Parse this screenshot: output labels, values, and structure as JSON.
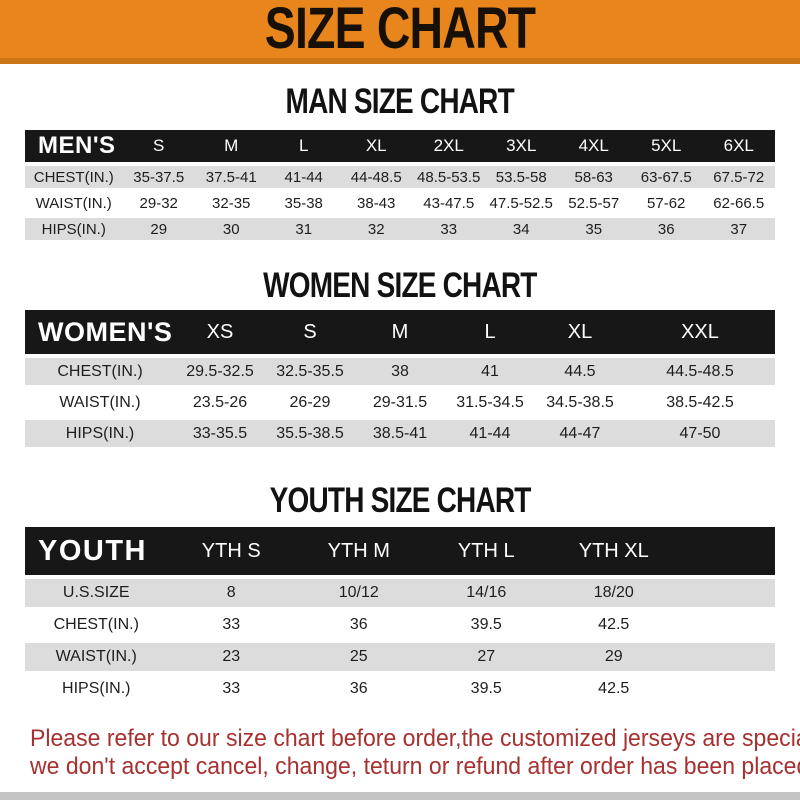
{
  "banner": {
    "title": "SIZE CHART",
    "bg_color": "#E8861D",
    "edge_color": "#C97714",
    "text_color": "#161006"
  },
  "sections": [
    {
      "heading": "MAN SIZE CHART",
      "label": "MEN'S",
      "columns": [
        "S",
        "M",
        "L",
        "XL",
        "2XL",
        "3XL",
        "4XL",
        "5XL",
        "6XL"
      ],
      "rows": [
        {
          "label": "CHEST(IN.)",
          "values": [
            "35-37.5",
            "37.5-41",
            "41-44",
            "44-48.5",
            "48.5-53.5",
            "53.5-58",
            "58-63",
            "63-67.5",
            "67.5-72"
          ]
        },
        {
          "label": "WAIST(IN.)",
          "values": [
            "29-32",
            "32-35",
            "35-38",
            "38-43",
            "43-47.5",
            "47.5-52.5",
            "52.5-57",
            "57-62",
            "62-66.5"
          ]
        },
        {
          "label": "HIPS(IN.)",
          "values": [
            "29",
            "30",
            "31",
            "32",
            "33",
            "34",
            "35",
            "36",
            "37"
          ]
        }
      ]
    },
    {
      "heading": "WOMEN SIZE CHART",
      "label": "WOMEN'S",
      "columns": [
        "XS",
        "S",
        "M",
        "L",
        "XL",
        "XXL"
      ],
      "rows": [
        {
          "label": "CHEST(IN.)",
          "values": [
            "29.5-32.5",
            "32.5-35.5",
            "38",
            "41",
            "44.5",
            "44.5-48.5"
          ]
        },
        {
          "label": "WAIST(IN.)",
          "values": [
            "23.5-26",
            "26-29",
            "29-31.5",
            "31.5-34.5",
            "34.5-38.5",
            "38.5-42.5"
          ]
        },
        {
          "label": "HIPS(IN.)",
          "values": [
            "33-35.5",
            "35.5-38.5",
            "38.5-41",
            "41-44",
            "44-47",
            "47-50"
          ]
        }
      ]
    },
    {
      "heading": "YOUTH SIZE CHART",
      "label": "YOUTH",
      "columns": [
        "YTH S",
        "YTH M",
        "YTH L",
        "YTH XL"
      ],
      "rows": [
        {
          "label": "U.S.SIZE",
          "values": [
            "8",
            "10/12",
            "14/16",
            "18/20"
          ]
        },
        {
          "label": "CHEST(IN.)",
          "values": [
            "33",
            "36",
            "39.5",
            "42.5"
          ]
        },
        {
          "label": "WAIST(IN.)",
          "values": [
            "23",
            "25",
            "27",
            "29"
          ]
        },
        {
          "label": "HIPS(IN.)",
          "values": [
            "33",
            "36",
            "39.5",
            "42.5"
          ]
        }
      ]
    }
  ],
  "table_style": {
    "header_bg": "#171717",
    "header_text": "#FFFFFF",
    "stripe_gray": "#DCDCDC",
    "stripe_white": "#FFFFFF"
  },
  "disclaimer": {
    "lines": [
      "Please refer to our size chart before order,the customized jerseys are special products,",
      "we don't accept cancel, change, teturn or refund after order has been placed!"
    ],
    "color": "#A73030"
  }
}
